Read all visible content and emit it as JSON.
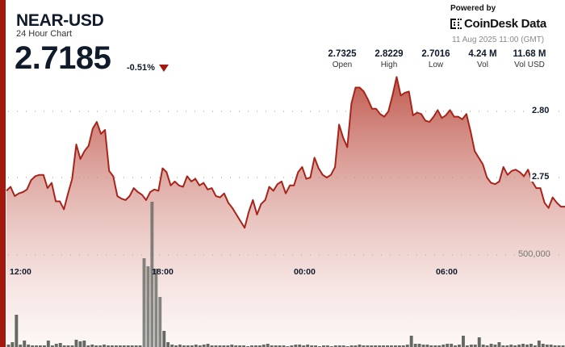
{
  "header": {
    "title": "NEAR-USD",
    "subtitle": "24 Hour Chart",
    "price": "2.7185",
    "change": "-0.51%",
    "change_direction": "down"
  },
  "branding": {
    "powered_by": "Powered by",
    "brand_name": "CoinDesk Data",
    "timestamp": "11 Aug 2025 11:00 (GMT)"
  },
  "stats": [
    {
      "value": "2.7325",
      "label": "Open"
    },
    {
      "value": "2.8229",
      "label": "High"
    },
    {
      "value": "2.7016",
      "label": "Low"
    },
    {
      "value": "4.24 M",
      "label": "Vol"
    },
    {
      "value": "11.68 M",
      "label": "Vol USD"
    }
  ],
  "colors": {
    "accent": "#a4190e",
    "line": "#a8241a",
    "volume_bar": "#5c615c",
    "text": "#0f1a2a"
  },
  "chart_data": {
    "type": "area",
    "title": "NEAR-USD 24 Hour Chart",
    "xlabel": "",
    "ylabel": "",
    "x_ticks": [
      "12:00",
      "18:00",
      "00:00",
      "06:00"
    ],
    "y_ticks": [
      "2.80",
      "2.75"
    ],
    "volume_tick": "500,000",
    "ylim": [
      2.69,
      2.83
    ],
    "grid": "dotted horizontal",
    "series": [
      {
        "name": "Price",
        "type": "area",
        "values": [
          2.74,
          2.743,
          2.736,
          2.738,
          2.739,
          2.741,
          2.748,
          2.751,
          2.752,
          2.752,
          2.742,
          2.746,
          2.732,
          2.732,
          2.726,
          2.738,
          2.749,
          2.775,
          2.764,
          2.77,
          2.774,
          2.787,
          2.792,
          2.783,
          2.786,
          2.755,
          2.751,
          2.736,
          2.734,
          2.733,
          2.736,
          2.742,
          2.739,
          2.737,
          2.733,
          2.739,
          2.741,
          2.74,
          2.757,
          2.754,
          2.744,
          2.747,
          2.744,
          2.743,
          2.751,
          2.747,
          2.749,
          2.744,
          2.746,
          2.741,
          2.742,
          2.736,
          2.735,
          2.738,
          2.731,
          2.727,
          2.722,
          2.717,
          2.712,
          2.724,
          2.733,
          2.722,
          2.73,
          2.733,
          2.743,
          2.74,
          2.745,
          2.747,
          2.738,
          2.744,
          2.744,
          2.754,
          2.758,
          2.749,
          2.75,
          2.765,
          2.757,
          2.752,
          2.75,
          2.752,
          2.758,
          2.79,
          2.78,
          2.773,
          2.806,
          2.818,
          2.818,
          2.815,
          2.809,
          2.802,
          2.802,
          2.798,
          2.796,
          2.8,
          2.812,
          2.826,
          2.812,
          2.814,
          2.815,
          2.797,
          2.799,
          2.798,
          2.793,
          2.792,
          2.796,
          2.801,
          2.795,
          2.797,
          2.801,
          2.796,
          2.796,
          2.794,
          2.798,
          2.785,
          2.77,
          2.765,
          2.76,
          2.75,
          2.746,
          2.745,
          2.747,
          2.758,
          2.752,
          2.755,
          2.756,
          2.754,
          2.751,
          2.756,
          2.747,
          2.742,
          2.742,
          2.731,
          2.727,
          2.735,
          2.731,
          2.728,
          2.728
        ]
      },
      {
        "name": "Volume",
        "type": "bar",
        "values": [
          3,
          6,
          40,
          3,
          8,
          3,
          2,
          2,
          2,
          2,
          8,
          2,
          4,
          5,
          2,
          2,
          2,
          9,
          7,
          8,
          2,
          3,
          2,
          2,
          3,
          2,
          2,
          2,
          2,
          2,
          2,
          2,
          2,
          2,
          110,
          100,
          180,
          97,
          62,
          20,
          6,
          3,
          2,
          3,
          2,
          2,
          2,
          3,
          2,
          3,
          4,
          2,
          2,
          2,
          2,
          2,
          3,
          2,
          2,
          2,
          1,
          2,
          2,
          2,
          3,
          4,
          2,
          2,
          2,
          2,
          1,
          2,
          3,
          3,
          2,
          3,
          2,
          2,
          1,
          2,
          2,
          1,
          2,
          2,
          2,
          1,
          2,
          2,
          3,
          2,
          2,
          2,
          2,
          2,
          2,
          2,
          2,
          2,
          2,
          2,
          3,
          14,
          4,
          4,
          3,
          3,
          2,
          2,
          2,
          3,
          4,
          4,
          2,
          3,
          14,
          2,
          3,
          3,
          12,
          3,
          2,
          4,
          3,
          6,
          2,
          2,
          3,
          2,
          3,
          4,
          3,
          4,
          2,
          8,
          4,
          3,
          3,
          2,
          2,
          2
        ]
      }
    ]
  }
}
